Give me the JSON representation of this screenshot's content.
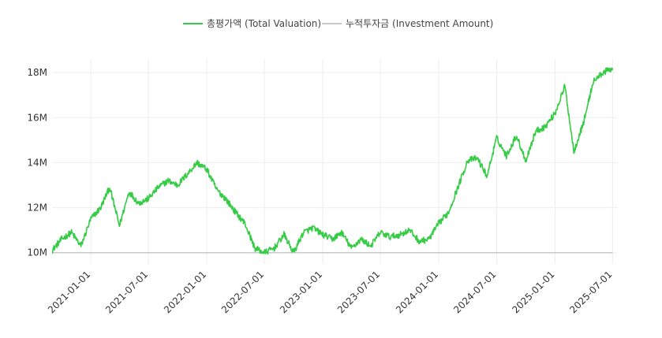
{
  "chart_data": {
    "type": "line",
    "legend_position": "top-center",
    "grid": true,
    "colors": {
      "total_valuation": "#33cc44",
      "investment_amount": "#c8c8c8"
    },
    "series": [
      {
        "name": "총평가액 (Total Valuation)",
        "x": [
          "2020-09-01",
          "2020-10-01",
          "2020-11-01",
          "2020-12-01",
          "2021-01-01",
          "2021-02-01",
          "2021-03-01",
          "2021-04-01",
          "2021-05-01",
          "2021-06-01",
          "2021-07-01",
          "2021-08-01",
          "2021-09-01",
          "2021-10-01",
          "2021-11-01",
          "2021-12-01",
          "2022-01-01",
          "2022-02-01",
          "2022-03-01",
          "2022-04-01",
          "2022-05-01",
          "2022-06-01",
          "2022-07-01",
          "2022-08-01",
          "2022-09-01",
          "2022-10-01",
          "2022-11-01",
          "2022-12-01",
          "2023-01-01",
          "2023-02-01",
          "2023-03-01",
          "2023-04-01",
          "2023-05-01",
          "2023-06-01",
          "2023-07-01",
          "2023-08-01",
          "2023-09-01",
          "2023-10-01",
          "2023-11-01",
          "2023-12-01",
          "2024-01-01",
          "2024-02-01",
          "2024-03-01",
          "2024-04-01",
          "2024-05-01",
          "2024-06-01",
          "2024-07-01",
          "2024-08-01",
          "2024-09-01",
          "2024-10-01",
          "2024-11-01",
          "2024-12-01",
          "2025-01-01",
          "2025-02-01",
          "2025-03-01",
          "2025-04-01",
          "2025-05-01",
          "2025-06-01",
          "2025-07-01"
        ],
        "values": [
          10.1,
          10.6,
          10.9,
          10.3,
          11.5,
          12.0,
          12.9,
          11.2,
          12.7,
          12.2,
          12.4,
          12.9,
          13.2,
          13.0,
          13.5,
          14.0,
          13.7,
          12.8,
          12.4,
          11.8,
          11.3,
          10.2,
          10.0,
          10.2,
          10.8,
          10.0,
          10.9,
          11.1,
          10.8,
          10.6,
          10.9,
          10.2,
          10.6,
          10.3,
          10.9,
          10.7,
          10.8,
          11.0,
          10.5,
          10.6,
          11.3,
          11.8,
          12.9,
          14.1,
          14.2,
          13.4,
          15.1,
          14.3,
          15.2,
          14.1,
          15.4,
          15.6,
          16.2,
          17.4,
          14.5,
          15.8,
          17.6,
          18.0,
          18.2
        ]
      },
      {
        "name": "누적투자금 (Investment Amount)",
        "x": [
          "2020-09-01",
          "2025-07-01"
        ],
        "values": [
          10.0,
          10.0
        ]
      }
    ],
    "yticks": [
      {
        "value": 10,
        "label": "10M"
      },
      {
        "value": 12,
        "label": "12M"
      },
      {
        "value": 14,
        "label": "14M"
      },
      {
        "value": 16,
        "label": "16M"
      },
      {
        "value": 18,
        "label": "18M"
      }
    ],
    "xticks": [
      {
        "date": "2021-01-01",
        "label": "2021-01-01"
      },
      {
        "date": "2021-07-01",
        "label": "2021-07-01"
      },
      {
        "date": "2022-01-01",
        "label": "2022-01-01"
      },
      {
        "date": "2022-07-01",
        "label": "2022-07-01"
      },
      {
        "date": "2023-01-01",
        "label": "2023-01-01"
      },
      {
        "date": "2023-07-01",
        "label": "2023-07-01"
      },
      {
        "date": "2024-01-01",
        "label": "2024-01-01"
      },
      {
        "date": "2024-07-01",
        "label": "2024-07-01"
      },
      {
        "date": "2025-01-01",
        "label": "2025-01-01"
      },
      {
        "date": "2025-07-01",
        "label": "2025-07-01"
      }
    ],
    "xlim": [
      "2020-09-01",
      "2025-07-15"
    ],
    "ylim": [
      9.5,
      18.6
    ]
  }
}
